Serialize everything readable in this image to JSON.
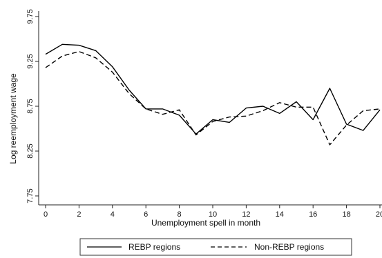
{
  "chart_data": {
    "type": "line",
    "title": "",
    "xlabel": "Unemployment spell in month",
    "ylabel": "Log reemployment wage",
    "xlim": [
      0,
      20
    ],
    "ylim": [
      7.75,
      9.75
    ],
    "xticks": [
      0,
      2,
      4,
      6,
      8,
      10,
      12,
      14,
      16,
      18,
      20
    ],
    "yticks": [
      7.75,
      8.25,
      8.75,
      9.25,
      9.75
    ],
    "xtick_labels": [
      "0",
      "2",
      "4",
      "6",
      "8",
      "10",
      "12",
      "14",
      "16",
      "18",
      "20"
    ],
    "ytick_labels": [
      "7.75",
      "8.25",
      "8.75",
      "9.25",
      "9.75"
    ],
    "grid": false,
    "legend_position": "bottom",
    "series": [
      {
        "name": "REBP regions",
        "style": "solid",
        "color": "#000000",
        "x": [
          0,
          1,
          2,
          3,
          4,
          5,
          6,
          7,
          8,
          9,
          10,
          11,
          12,
          13,
          14,
          15,
          16,
          17,
          18,
          19,
          20
        ],
        "y": [
          9.33,
          9.44,
          9.43,
          9.37,
          9.19,
          8.93,
          8.72,
          8.72,
          8.65,
          8.44,
          8.6,
          8.57,
          8.73,
          8.75,
          8.67,
          8.8,
          8.6,
          8.95,
          8.55,
          8.48,
          8.71
        ]
      },
      {
        "name": "Non-REBP regions",
        "style": "dashed",
        "color": "#000000",
        "x": [
          0,
          1,
          2,
          3,
          4,
          5,
          6,
          7,
          8,
          9,
          10,
          11,
          12,
          13,
          14,
          15,
          16,
          17,
          18,
          19,
          20
        ],
        "y": [
          9.18,
          9.31,
          9.36,
          9.29,
          9.13,
          8.89,
          8.72,
          8.66,
          8.71,
          8.43,
          8.58,
          8.63,
          8.64,
          8.7,
          8.79,
          8.74,
          8.74,
          8.32,
          8.54,
          8.7,
          8.72
        ]
      }
    ]
  }
}
